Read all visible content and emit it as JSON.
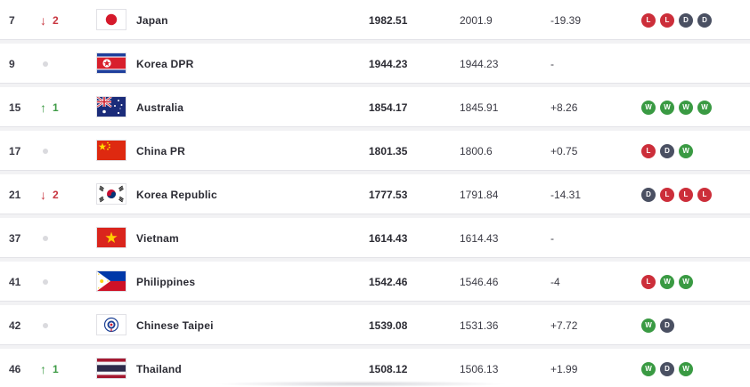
{
  "rows": [
    {
      "rank": "7",
      "move_dir": "down",
      "move_value": "2",
      "team": "Japan",
      "flag": "japan-flag-icon",
      "points": "1982.51",
      "previous": "2001.9",
      "diff": "-19.39",
      "form": [
        "L",
        "L",
        "D",
        "D"
      ]
    },
    {
      "rank": "9",
      "move_dir": "none",
      "move_value": "",
      "team": "Korea DPR",
      "flag": "korea-dpr-flag-icon",
      "points": "1944.23",
      "previous": "1944.23",
      "diff": "-",
      "form": []
    },
    {
      "rank": "15",
      "move_dir": "up",
      "move_value": "1",
      "team": "Australia",
      "flag": "australia-flag-icon",
      "points": "1854.17",
      "previous": "1845.91",
      "diff": "+8.26",
      "form": [
        "W",
        "W",
        "W",
        "W"
      ]
    },
    {
      "rank": "17",
      "move_dir": "none",
      "move_value": "",
      "team": "China PR",
      "flag": "china-flag-icon",
      "points": "1801.35",
      "previous": "1800.6",
      "diff": "+0.75",
      "form": [
        "L",
        "D",
        "W"
      ]
    },
    {
      "rank": "21",
      "move_dir": "down",
      "move_value": "2",
      "team": "Korea Republic",
      "flag": "korea-republic-flag-icon",
      "points": "1777.53",
      "previous": "1791.84",
      "diff": "-14.31",
      "form": [
        "D",
        "L",
        "L",
        "L"
      ]
    },
    {
      "rank": "37",
      "move_dir": "none",
      "move_value": "",
      "team": "Vietnam",
      "flag": "vietnam-flag-icon",
      "points": "1614.43",
      "previous": "1614.43",
      "diff": "-",
      "form": []
    },
    {
      "rank": "41",
      "move_dir": "none",
      "move_value": "",
      "team": "Philippines",
      "flag": "philippines-flag-icon",
      "points": "1542.46",
      "previous": "1546.46",
      "diff": "-4",
      "form": [
        "L",
        "W",
        "W"
      ]
    },
    {
      "rank": "42",
      "move_dir": "none",
      "move_value": "",
      "team": "Chinese Taipei",
      "flag": "chinese-taipei-flag-icon",
      "points": "1539.08",
      "previous": "1531.36",
      "diff": "+7.72",
      "form": [
        "W",
        "D"
      ]
    },
    {
      "rank": "46",
      "move_dir": "up",
      "move_value": "1",
      "team": "Thailand",
      "flag": "thailand-flag-icon",
      "points": "1508.12",
      "previous": "1506.13",
      "diff": "+1.99",
      "form": [
        "W",
        "D",
        "W"
      ]
    }
  ],
  "colors": {
    "loss": "#cc2e3a",
    "draw": "#4a5062",
    "win": "#3a9a43",
    "down": "#c8353f",
    "up": "#3e9b46"
  }
}
